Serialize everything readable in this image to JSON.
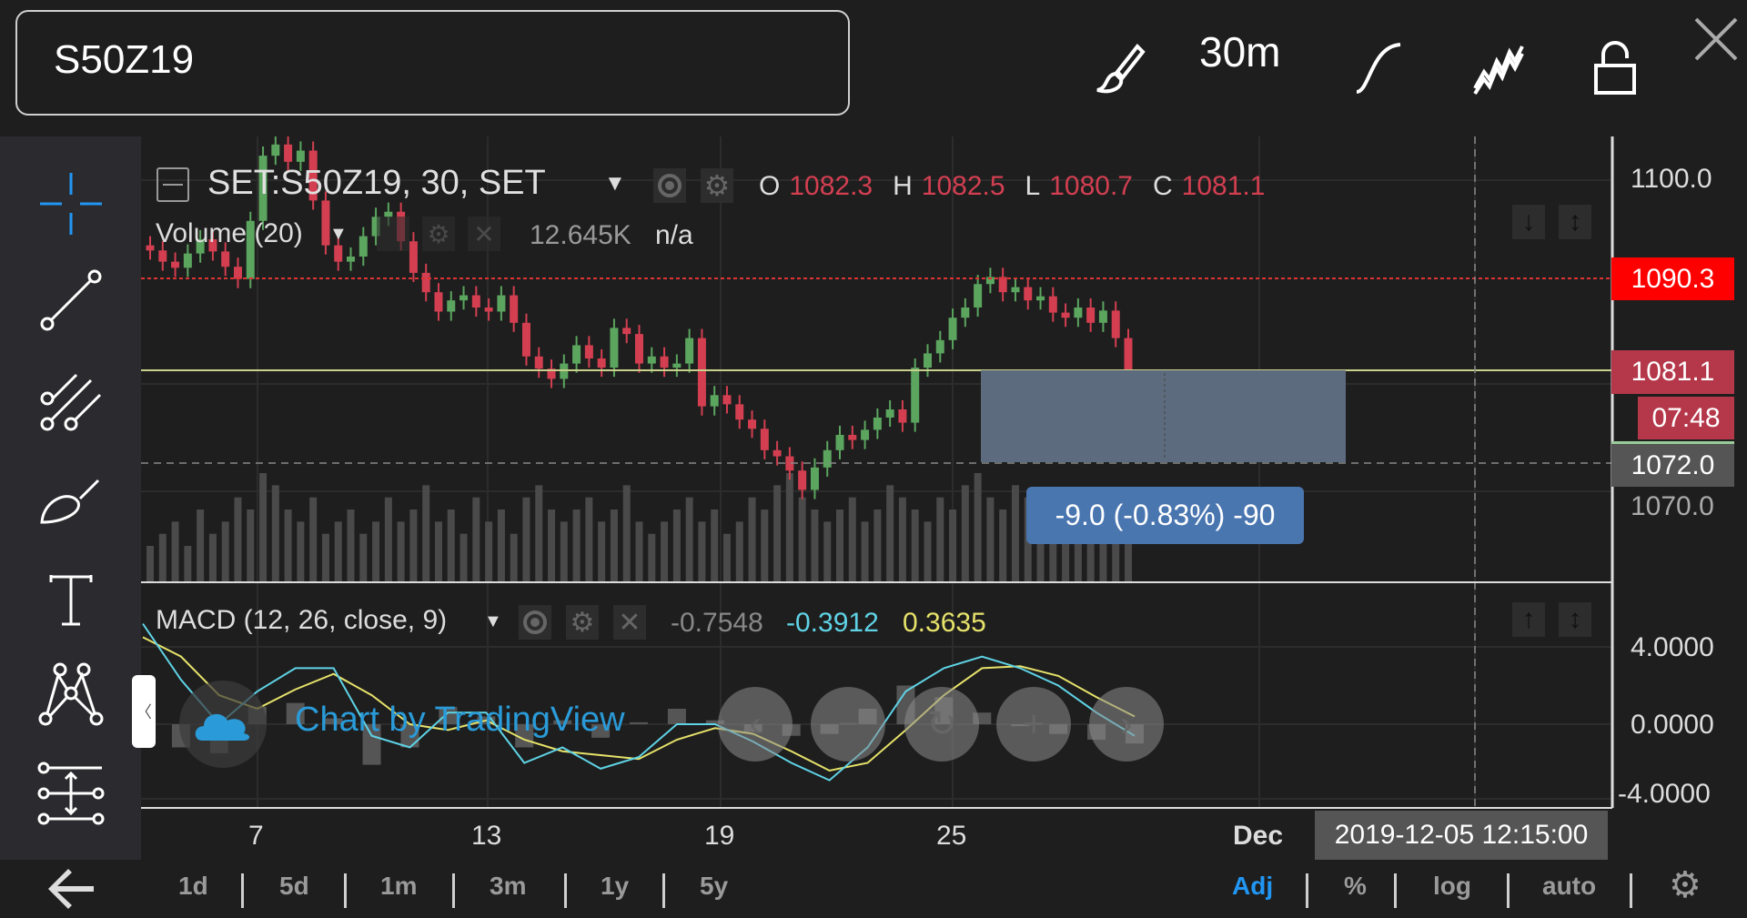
{
  "topbar": {
    "symbol": "S50Z19",
    "interval": "30m",
    "icons": [
      "brush-icon",
      "curve-icon",
      "chart-type-icon",
      "lock-icon",
      "close-icon"
    ]
  },
  "left_toolbar": {
    "tools": [
      "crosshair-icon",
      "trend-line-icon",
      "pitchfork-icon",
      "brush-draw-icon",
      "text-icon",
      "pattern-icon",
      "measure-icon"
    ],
    "back": "back-arrow-icon",
    "accent": "#2196f3"
  },
  "legend": {
    "title": "SET:S50Z19, 30, SET",
    "o_label": "O",
    "o": "1082.3",
    "h_label": "H",
    "h": "1082.5",
    "l_label": "L",
    "l": "1080.7",
    "c_label": "C",
    "c": "1081.1"
  },
  "volume": {
    "label": "Volume (20)",
    "value": "12.645K",
    "ma": "n/a"
  },
  "macd": {
    "label": "MACD (12, 26, close, 9)",
    "hist": "-0.7548",
    "macd": "-0.3912",
    "signal": "0.3635",
    "macd_color": "#5fd3e6",
    "signal_color": "#e6e26a"
  },
  "price_axis": {
    "ticks": [
      "1100.0",
      "1070.0"
    ],
    "last_high": "1090.3",
    "last_price": "1081.1",
    "countdown": "07:48",
    "crosshair_price": "1072.0"
  },
  "macd_axis": {
    "ticks": [
      "4.0000",
      "0.0000",
      "-4.0000"
    ]
  },
  "time_axis": {
    "ticks": [
      "7",
      "13",
      "19",
      "25",
      "Dec"
    ],
    "crosshair_time": "2019-12-05 12:15:00"
  },
  "measure": {
    "label": "-9.0 (-0.83%) -90"
  },
  "watermark": {
    "text": "Chart by TradingView"
  },
  "nav": [
    "scroll-left-icon",
    "zoom-out-icon",
    "reset-icon",
    "zoom-in-icon",
    "scroll-right-icon"
  ],
  "bottom": {
    "ranges": [
      "1d",
      "5d",
      "1m",
      "3m",
      "1y",
      "5y"
    ],
    "options": [
      "Adj",
      "%",
      "log",
      "auto"
    ],
    "active": "Adj"
  },
  "colors": {
    "up": "#5ba55f",
    "down": "#d33f51",
    "high_line": "#ff0000",
    "last_price": "#b5384a",
    "measure_box": "#5d6b7e",
    "measure_label": "#4a76b0"
  },
  "chart_data": {
    "type": "candlestick",
    "ylim": [
      1060,
      1104
    ],
    "closes": [
      1093.1,
      1092.0,
      1091.4,
      1092.8,
      1094.2,
      1093.0,
      1091.5,
      1090.3,
      1096,
      1102.4,
      1103.5,
      1101.8,
      1102.9,
      1098,
      1093.6,
      1092.0,
      1092.5,
      1094.5,
      1096.4,
      1096.9,
      1094,
      1090.9,
      1089,
      1087.1,
      1088.2,
      1088.7,
      1087.5,
      1087.1,
      1088.7,
      1086,
      1082.7,
      1081.5,
      1080.5,
      1082,
      1083.8,
      1082.5,
      1081.6,
      1085.5,
      1084.9,
      1082,
      1082.7,
      1081.6,
      1082.0,
      1084.5,
      1077.8,
      1078.9,
      1078.0,
      1076.5,
      1075.6,
      1073.5,
      1072.9,
      1071.5,
      1069.6,
      1071.8,
      1073.5,
      1075.0,
      1074.5,
      1075.5,
      1076.7,
      1077.5,
      1076.2,
      1081.6,
      1083.0,
      1084.3,
      1086.5,
      1087.5,
      1089.8,
      1090.5,
      1089.0,
      1089.5,
      1088.2,
      1088.6,
      1087.0,
      1086.5,
      1087.5,
      1086.0,
      1087.2,
      1084.5,
      1081.1
    ],
    "volumes": [
      3,
      4,
      5,
      3,
      6,
      4,
      5,
      7,
      6,
      9,
      8,
      6,
      5,
      7,
      4,
      5,
      6,
      4,
      5,
      7,
      5,
      6,
      8,
      5,
      6,
      4,
      7,
      5,
      6,
      4,
      7,
      8,
      6,
      5,
      6,
      7,
      5,
      6,
      8,
      5,
      4,
      5,
      6,
      7,
      5,
      6,
      4,
      5,
      7,
      6,
      8,
      9,
      7,
      6,
      5,
      6,
      7,
      5,
      6,
      8,
      7,
      6,
      5,
      7,
      6,
      8,
      9,
      7,
      6,
      8,
      7,
      6,
      5,
      6,
      7,
      5,
      6,
      7,
      6
    ],
    "macd_line": [
      5.2,
      2.3,
      0,
      1.7,
      2.9,
      2.9,
      -0.6,
      -1.2,
      0.6,
      0.6,
      -2.0,
      -1.2,
      -2.3,
      -1.7,
      0,
      0,
      -0.9,
      -2.0,
      -2.9,
      -1.2,
      1.7,
      2.9,
      3.5,
      2.9,
      2.0,
      0.6,
      -0.6
    ],
    "signal_line": [
      4.5,
      3.5,
      1.5,
      0.8,
      1.8,
      2.6,
      1.5,
      0,
      -0.3,
      0.2,
      -0.8,
      -1.4,
      -1.6,
      -1.8,
      -0.8,
      -0.2,
      -0.5,
      -1.4,
      -2.4,
      -2.0,
      -0.3,
      1.5,
      2.9,
      3.0,
      2.5,
      1.4,
      0.4
    ],
    "macd_ylim": [
      -4.5,
      5.5
    ]
  }
}
